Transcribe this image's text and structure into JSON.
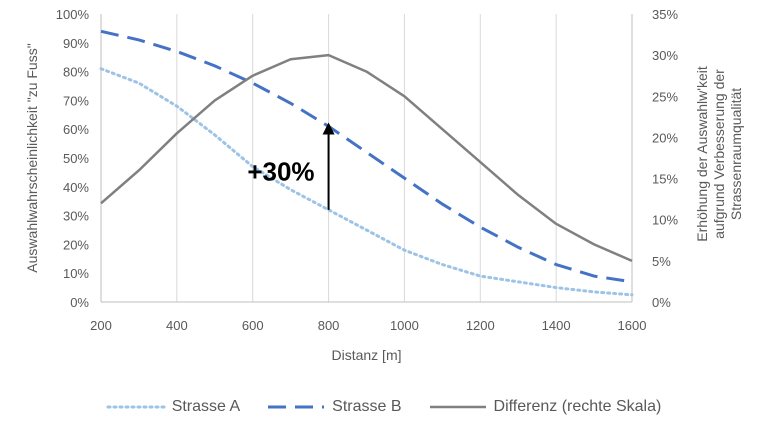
{
  "chart_data": {
    "type": "line",
    "xlabel": "Distanz [m]",
    "ylabel": "Auswahlwahrscheinlichkeit \"zu Fuss\"",
    "y2label_lines": [
      "Erhöhung der Auswahlw'keit",
      "aufgrund Verbesserung der",
      "Strassenraumqualität"
    ],
    "xlim": [
      200,
      1600
    ],
    "ylim": [
      0,
      100
    ],
    "y2lim": [
      0,
      35
    ],
    "x_ticks": [
      "200",
      "400",
      "600",
      "800",
      "1000",
      "1200",
      "1400",
      "1600"
    ],
    "y_ticks": [
      "0%",
      "10%",
      "20%",
      "30%",
      "40%",
      "50%",
      "60%",
      "70%",
      "80%",
      "90%",
      "100%"
    ],
    "y2_ticks": [
      "0%",
      "5%",
      "10%",
      "15%",
      "20%",
      "25%",
      "30%",
      "35%"
    ],
    "grid": "vertical",
    "legend_position": "bottom",
    "x": [
      200,
      300,
      400,
      500,
      600,
      700,
      800,
      900,
      1000,
      1100,
      1200,
      1300,
      1400,
      1500,
      1600
    ],
    "series": [
      {
        "name": "Strasse A",
        "axis": "left",
        "color": "#9dc3e6",
        "style": "dotted",
        "values": [
          81,
          76,
          68,
          58,
          47,
          39,
          32,
          25,
          18,
          13,
          9,
          7,
          5,
          3.5,
          2.5
        ]
      },
      {
        "name": "Strasse B",
        "axis": "left",
        "color": "#4472c4",
        "style": "dashed",
        "values": [
          94,
          91,
          87,
          82,
          76,
          69,
          61,
          52,
          43,
          34,
          26,
          19,
          13,
          9,
          7
        ]
      },
      {
        "name": "Differenz (rechte Skala)",
        "axis": "right",
        "color": "#808080",
        "style": "solid",
        "values": [
          12,
          16,
          20.5,
          24.5,
          27.5,
          29.5,
          30,
          28,
          25,
          21,
          17,
          13,
          9.5,
          7,
          5
        ]
      }
    ],
    "annotation": {
      "label": "+30%",
      "x": 800,
      "from_y": 32,
      "to_y": 62
    }
  }
}
